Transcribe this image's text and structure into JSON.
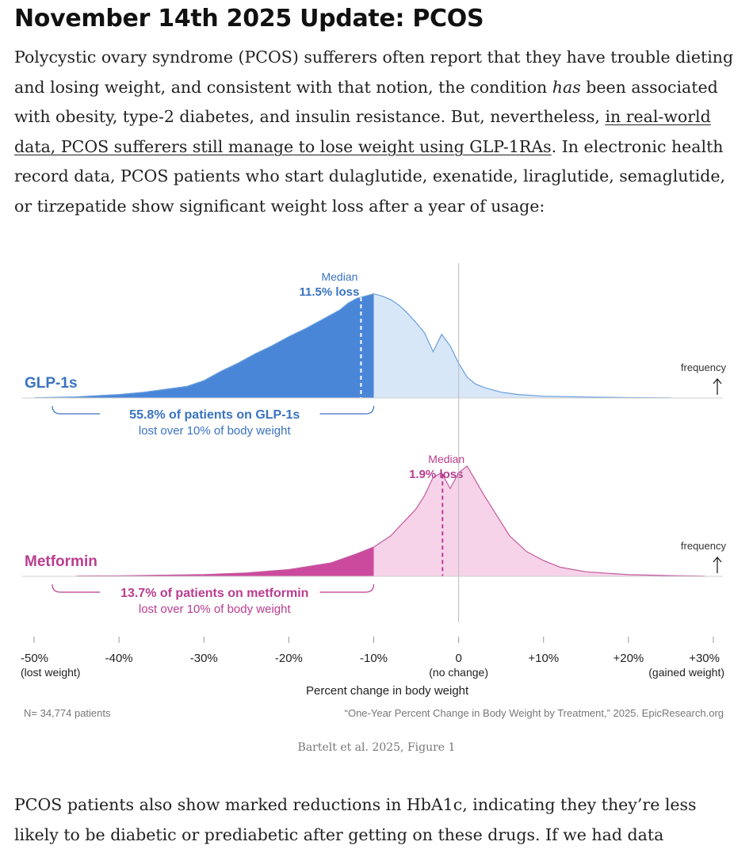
{
  "article": {
    "heading": "November 14th 2025 Update: PCOS",
    "para1_a": "Polycystic ovary syndrome (PCOS) sufferers often report that they have trouble dieting and losing weight, and consistent with that notion, the condition ",
    "para1_em": "has",
    "para1_b": " been associated with obesity, type-2 diabetes, and insulin resistance. But, nevertheless, ",
    "para1_link": "in real-world data, PCOS sufferers still manage to lose weight using GLP-1RAs",
    "para1_c": ". In electronic health record data, PCOS patients who start dulaglutide, exenatide, liraglutide, semaglutide, or tirzepatide show significant weight loss after a year of usage:",
    "figure_caption": "Bartelt et al. 2025, Figure 1",
    "para2": "PCOS patients also show marked reductions in HbA1c, indicating they they’re less likely to be diabetic or prediabetic after getting on these drugs. If we had data"
  },
  "colors": {
    "glp_dark": "#4a86d8",
    "glp_light": "#d8e7f8",
    "glp_line": "#6b9fdc",
    "glp_text": "#3a73c0",
    "met_dark": "#cc4a9e",
    "met_light": "#f6d3e9",
    "met_line": "#c45a9d",
    "met_text": "#b93d8f"
  },
  "chart_data": {
    "type": "area",
    "title": "One-Year Percent Change in Body Weight by Treatment",
    "xlabel": "Percent change in body weight",
    "ylabel": "frequency",
    "xlim": [
      -50,
      30
    ],
    "ticks": [
      {
        "value": -50,
        "label": "-50%",
        "sublabel": "(lost weight)"
      },
      {
        "value": -40,
        "label": "-40%",
        "sublabel": ""
      },
      {
        "value": -30,
        "label": "-30%",
        "sublabel": ""
      },
      {
        "value": -20,
        "label": "-20%",
        "sublabel": ""
      },
      {
        "value": -10,
        "label": "-10%",
        "sublabel": ""
      },
      {
        "value": 0,
        "label": "0",
        "sublabel": "(no change)"
      },
      {
        "value": 10,
        "label": "+10%",
        "sublabel": ""
      },
      {
        "value": 20,
        "label": "+20%",
        "sublabel": ""
      },
      {
        "value": 30,
        "label": "+30%",
        "sublabel": "(gained weight)"
      }
    ],
    "series": [
      {
        "name": "GLP-1s",
        "median_label": "Median",
        "median_value_label": "11.5% loss",
        "median": -11.5,
        "bracket_pct_label": "55.8% of patients on GLP-1s",
        "bracket_sub_label": "lost over 10% of body weight",
        "x": [
          -50,
          -45,
          -40,
          -37,
          -35,
          -32,
          -30,
          -28,
          -26,
          -24,
          -22,
          -20,
          -18,
          -16,
          -15,
          -14,
          -13,
          -12,
          -11,
          -10,
          -9,
          -8,
          -7,
          -6,
          -5,
          -4,
          -3,
          -2,
          -1,
          0,
          1,
          2,
          3,
          5,
          7,
          10,
          15,
          20,
          25
        ],
        "values": [
          0.2,
          1,
          3,
          5,
          7,
          10,
          15,
          23,
          30,
          38,
          45,
          53,
          60,
          68,
          72,
          76,
          82,
          86,
          88,
          90,
          88,
          85,
          80,
          73,
          65,
          56,
          40,
          55,
          45,
          30,
          18,
          12,
          9,
          5,
          3,
          1.5,
          0.8,
          0.4,
          0.1
        ],
        "frequency_label": "frequency"
      },
      {
        "name": "Metformin",
        "median_label": "Median",
        "median_value_label": "1.9% loss",
        "median": -1.9,
        "bracket_pct_label": "13.7% of patients on metformin",
        "bracket_sub_label": "lost over 10% of body weight",
        "x": [
          -45,
          -40,
          -35,
          -30,
          -25,
          -20,
          -15,
          -12,
          -10,
          -8,
          -6,
          -5,
          -4,
          -3,
          -2,
          -1,
          0,
          1,
          2,
          3,
          4,
          5,
          6,
          8,
          10,
          12,
          15,
          20,
          25,
          29
        ],
        "values": [
          0.3,
          0.5,
          1,
          1.5,
          3,
          6,
          12,
          20,
          26,
          36,
          52,
          60,
          72,
          88,
          92,
          78,
          92,
          98,
          85,
          72,
          60,
          48,
          36,
          22,
          14,
          8,
          4,
          1.5,
          0.6,
          0.2
        ],
        "frequency_label": "frequency"
      }
    ],
    "footer_left": "N= 34,774 patients",
    "footer_right": "“One-Year Percent Change in Body Weight by Treatment,” 2025. EpicResearch.org"
  }
}
